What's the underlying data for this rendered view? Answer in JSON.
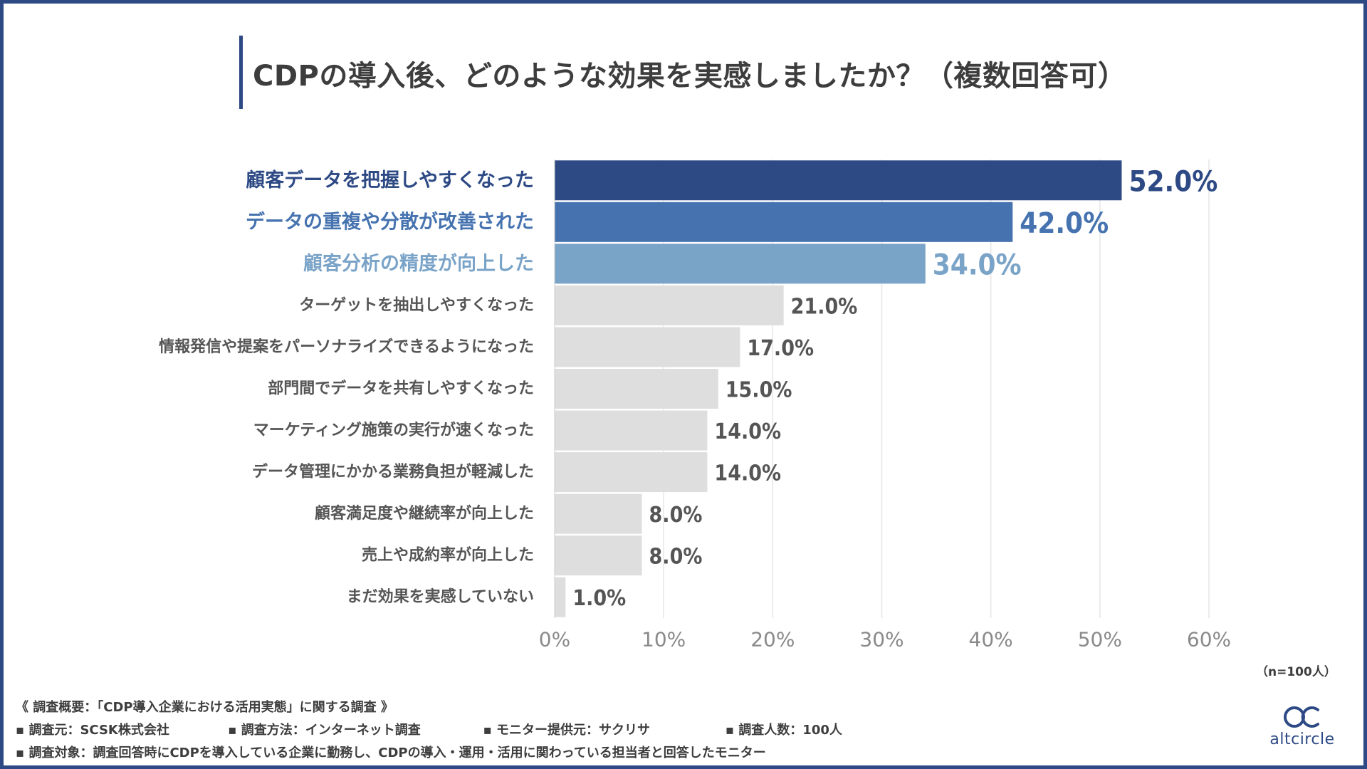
{
  "title": "CDPの導入後、どのような効果を実感しましたか？（複数回答可）",
  "sample_note": "（n=100人）",
  "footer": {
    "survey_overview": "《 調査概要：「CDP導入企業における活用実態」に関する調査 》",
    "items_row1": [
      "▪ 調査元：SCSK株式会社",
      "▪ 調査方法：インターネット調査",
      "▪ モニター提供元：サクリサ",
      "▪ 調査人数：100人"
    ],
    "target": "▪ 調査対象：調査回答時にCDPを導入している企業に勤務し、CDPの導入・運用・活用に関わっている担当者と回答したモニター"
  },
  "logo": {
    "text": "altcircle",
    "icon": "altcircle-logo-icon"
  },
  "colors": {
    "frame": "#2e4a85",
    "rank1": "#2e4a85",
    "rank2": "#4673b0",
    "rank3": "#7aa3c8",
    "other_bar": "#dedede",
    "other_text": "#555555",
    "grid": "#e6e6e6"
  },
  "chart_data": {
    "type": "bar",
    "orientation": "horizontal",
    "categories": [
      "顧客データを把握しやすくなった",
      "データの重複や分散が改善された",
      "顧客分析の精度が向上した",
      "ターゲットを抽出しやすくなった",
      "情報発信や提案をパーソナライズできるようになった",
      "部門間でデータを共有しやすくなった",
      "マーケティング施策の実行が速くなった",
      "データ管理にかかる業務負担が軽減した",
      "顧客満足度や継続率が向上した",
      "売上や成約率が向上した",
      "まだ効果を実感していない"
    ],
    "values": [
      52.0,
      42.0,
      34.0,
      21.0,
      17.0,
      15.0,
      14.0,
      14.0,
      8.0,
      8.0,
      1.0
    ],
    "value_labels": [
      "52.0%",
      "42.0%",
      "34.0%",
      "21.0%",
      "17.0%",
      "15.0%",
      "14.0%",
      "14.0%",
      "8.0%",
      "8.0%",
      "1.0%"
    ],
    "xlim": [
      0,
      60
    ],
    "xticks": [
      0,
      10,
      20,
      30,
      40,
      50,
      60
    ],
    "xtick_labels": [
      "0%",
      "10%",
      "20%",
      "30%",
      "40%",
      "50%",
      "60%"
    ],
    "grid": true,
    "highlight_top": 3
  }
}
